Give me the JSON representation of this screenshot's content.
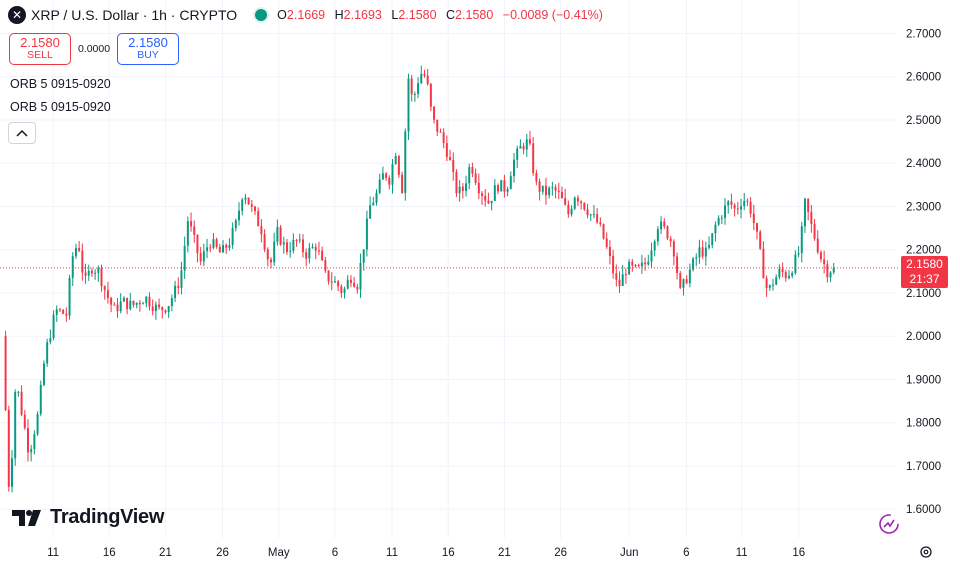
{
  "header": {
    "symbol_icon": "x-mark-icon",
    "title": "XRP / U.S. Dollar · 1h · CRYPTO",
    "ohlc": {
      "o_label": "O",
      "o": "2.1669",
      "h_label": "H",
      "h": "2.1693",
      "l_label": "L",
      "l": "2.1580",
      "c_label": "C",
      "c": "2.1580",
      "change": "−0.0089 (−0.41%)"
    }
  },
  "trade": {
    "sell_price": "2.1580",
    "sell_label": "SELL",
    "spread": "0.0000",
    "buy_price": "2.1580",
    "buy_label": "BUY"
  },
  "indicators": [
    "ORB 5 0915-0920",
    "ORB 5 0915-0920"
  ],
  "price_tag": {
    "price": "2.1580",
    "countdown": "21:37"
  },
  "branding": {
    "name": "TradingView"
  },
  "colors": {
    "up": "#089981",
    "down": "#f23645",
    "grid": "#f0f3fa",
    "axis_text": "#131722"
  },
  "chart_data": {
    "type": "candlestick",
    "title": "XRP / U.S. Dollar · 1h · CRYPTO",
    "ylim": [
      1.575,
      2.745
    ],
    "y_ticks": [
      "2.7000",
      "2.6000",
      "2.5000",
      "2.4000",
      "2.3000",
      "2.2000",
      "2.1000",
      "2.0000",
      "1.9000",
      "1.8000",
      "1.7000",
      "1.6000"
    ],
    "x_ticks": [
      {
        "label": "11",
        "t": 0.055
      },
      {
        "label": "16",
        "t": 0.118
      },
      {
        "label": "21",
        "t": 0.181
      },
      {
        "label": "26",
        "t": 0.245
      },
      {
        "label": "May",
        "t": 0.308
      },
      {
        "label": "6",
        "t": 0.371
      },
      {
        "label": "11",
        "t": 0.435
      },
      {
        "label": "16",
        "t": 0.498
      },
      {
        "label": "21",
        "t": 0.561
      },
      {
        "label": "26",
        "t": 0.624
      },
      {
        "label": "Jun",
        "t": 0.701
      },
      {
        "label": "6",
        "t": 0.765
      },
      {
        "label": "11",
        "t": 0.827
      },
      {
        "label": "16",
        "t": 0.891
      }
    ],
    "path": [
      [
        0.0,
        2.0
      ],
      [
        0.008,
        1.62
      ],
      [
        0.015,
        1.9
      ],
      [
        0.03,
        1.73
      ],
      [
        0.04,
        1.82
      ],
      [
        0.048,
        1.96
      ],
      [
        0.06,
        2.06
      ],
      [
        0.072,
        2.05
      ],
      [
        0.078,
        2.18
      ],
      [
        0.085,
        2.22
      ],
      [
        0.092,
        2.12
      ],
      [
        0.1,
        2.16
      ],
      [
        0.108,
        2.15
      ],
      [
        0.116,
        2.1
      ],
      [
        0.125,
        2.06
      ],
      [
        0.135,
        2.08
      ],
      [
        0.145,
        2.07
      ],
      [
        0.16,
        2.09
      ],
      [
        0.175,
        2.06
      ],
      [
        0.185,
        2.07
      ],
      [
        0.195,
        2.11
      ],
      [
        0.2,
        2.14
      ],
      [
        0.208,
        2.27
      ],
      [
        0.215,
        2.22
      ],
      [
        0.222,
        2.17
      ],
      [
        0.232,
        2.22
      ],
      [
        0.245,
        2.19
      ],
      [
        0.255,
        2.22
      ],
      [
        0.262,
        2.26
      ],
      [
        0.27,
        2.34
      ],
      [
        0.28,
        2.29
      ],
      [
        0.29,
        2.25
      ],
      [
        0.3,
        2.16
      ],
      [
        0.308,
        2.24
      ],
      [
        0.318,
        2.2
      ],
      [
        0.33,
        2.22
      ],
      [
        0.34,
        2.19
      ],
      [
        0.352,
        2.21
      ],
      [
        0.362,
        2.14
      ],
      [
        0.375,
        2.12
      ],
      [
        0.382,
        2.1
      ],
      [
        0.39,
        2.14
      ],
      [
        0.398,
        2.12
      ],
      [
        0.405,
        2.21
      ],
      [
        0.412,
        2.3
      ],
      [
        0.42,
        2.33
      ],
      [
        0.428,
        2.38
      ],
      [
        0.435,
        2.36
      ],
      [
        0.44,
        2.44
      ],
      [
        0.448,
        2.34
      ],
      [
        0.455,
        2.6
      ],
      [
        0.46,
        2.54
      ],
      [
        0.468,
        2.61
      ],
      [
        0.475,
        2.6
      ],
      [
        0.482,
        2.5
      ],
      [
        0.49,
        2.47
      ],
      [
        0.5,
        2.42
      ],
      [
        0.508,
        2.34
      ],
      [
        0.515,
        2.33
      ],
      [
        0.525,
        2.4
      ],
      [
        0.535,
        2.34
      ],
      [
        0.545,
        2.31
      ],
      [
        0.555,
        2.35
      ],
      [
        0.565,
        2.34
      ],
      [
        0.572,
        2.4
      ],
      [
        0.582,
        2.44
      ],
      [
        0.59,
        2.45
      ],
      [
        0.598,
        2.35
      ],
      [
        0.608,
        2.33
      ],
      [
        0.618,
        2.34
      ],
      [
        0.626,
        2.32
      ],
      [
        0.634,
        2.28
      ],
      [
        0.642,
        2.33
      ],
      [
        0.65,
        2.31
      ],
      [
        0.66,
        2.28
      ],
      [
        0.668,
        2.26
      ],
      [
        0.675,
        2.22
      ],
      [
        0.682,
        2.17
      ],
      [
        0.69,
        2.11
      ],
      [
        0.7,
        2.16
      ],
      [
        0.712,
        2.15
      ],
      [
        0.722,
        2.17
      ],
      [
        0.735,
        2.26
      ],
      [
        0.745,
        2.24
      ],
      [
        0.752,
        2.21
      ],
      [
        0.76,
        2.1
      ],
      [
        0.768,
        2.14
      ],
      [
        0.775,
        2.17
      ],
      [
        0.782,
        2.2
      ],
      [
        0.79,
        2.19
      ],
      [
        0.8,
        2.26
      ],
      [
        0.808,
        2.29
      ],
      [
        0.815,
        2.31
      ],
      [
        0.822,
        2.29
      ],
      [
        0.83,
        2.32
      ],
      [
        0.838,
        2.3
      ],
      [
        0.845,
        2.24
      ],
      [
        0.852,
        2.16
      ],
      [
        0.858,
        2.1
      ],
      [
        0.865,
        2.13
      ],
      [
        0.872,
        2.15
      ],
      [
        0.88,
        2.14
      ],
      [
        0.888,
        2.17
      ],
      [
        0.894,
        2.2
      ],
      [
        0.9,
        2.31
      ],
      [
        0.906,
        2.26
      ],
      [
        0.912,
        2.22
      ],
      [
        0.918,
        2.18
      ],
      [
        0.925,
        2.15
      ],
      [
        0.932,
        2.16
      ]
    ],
    "last_price": 2.158,
    "axis_position": "right"
  }
}
